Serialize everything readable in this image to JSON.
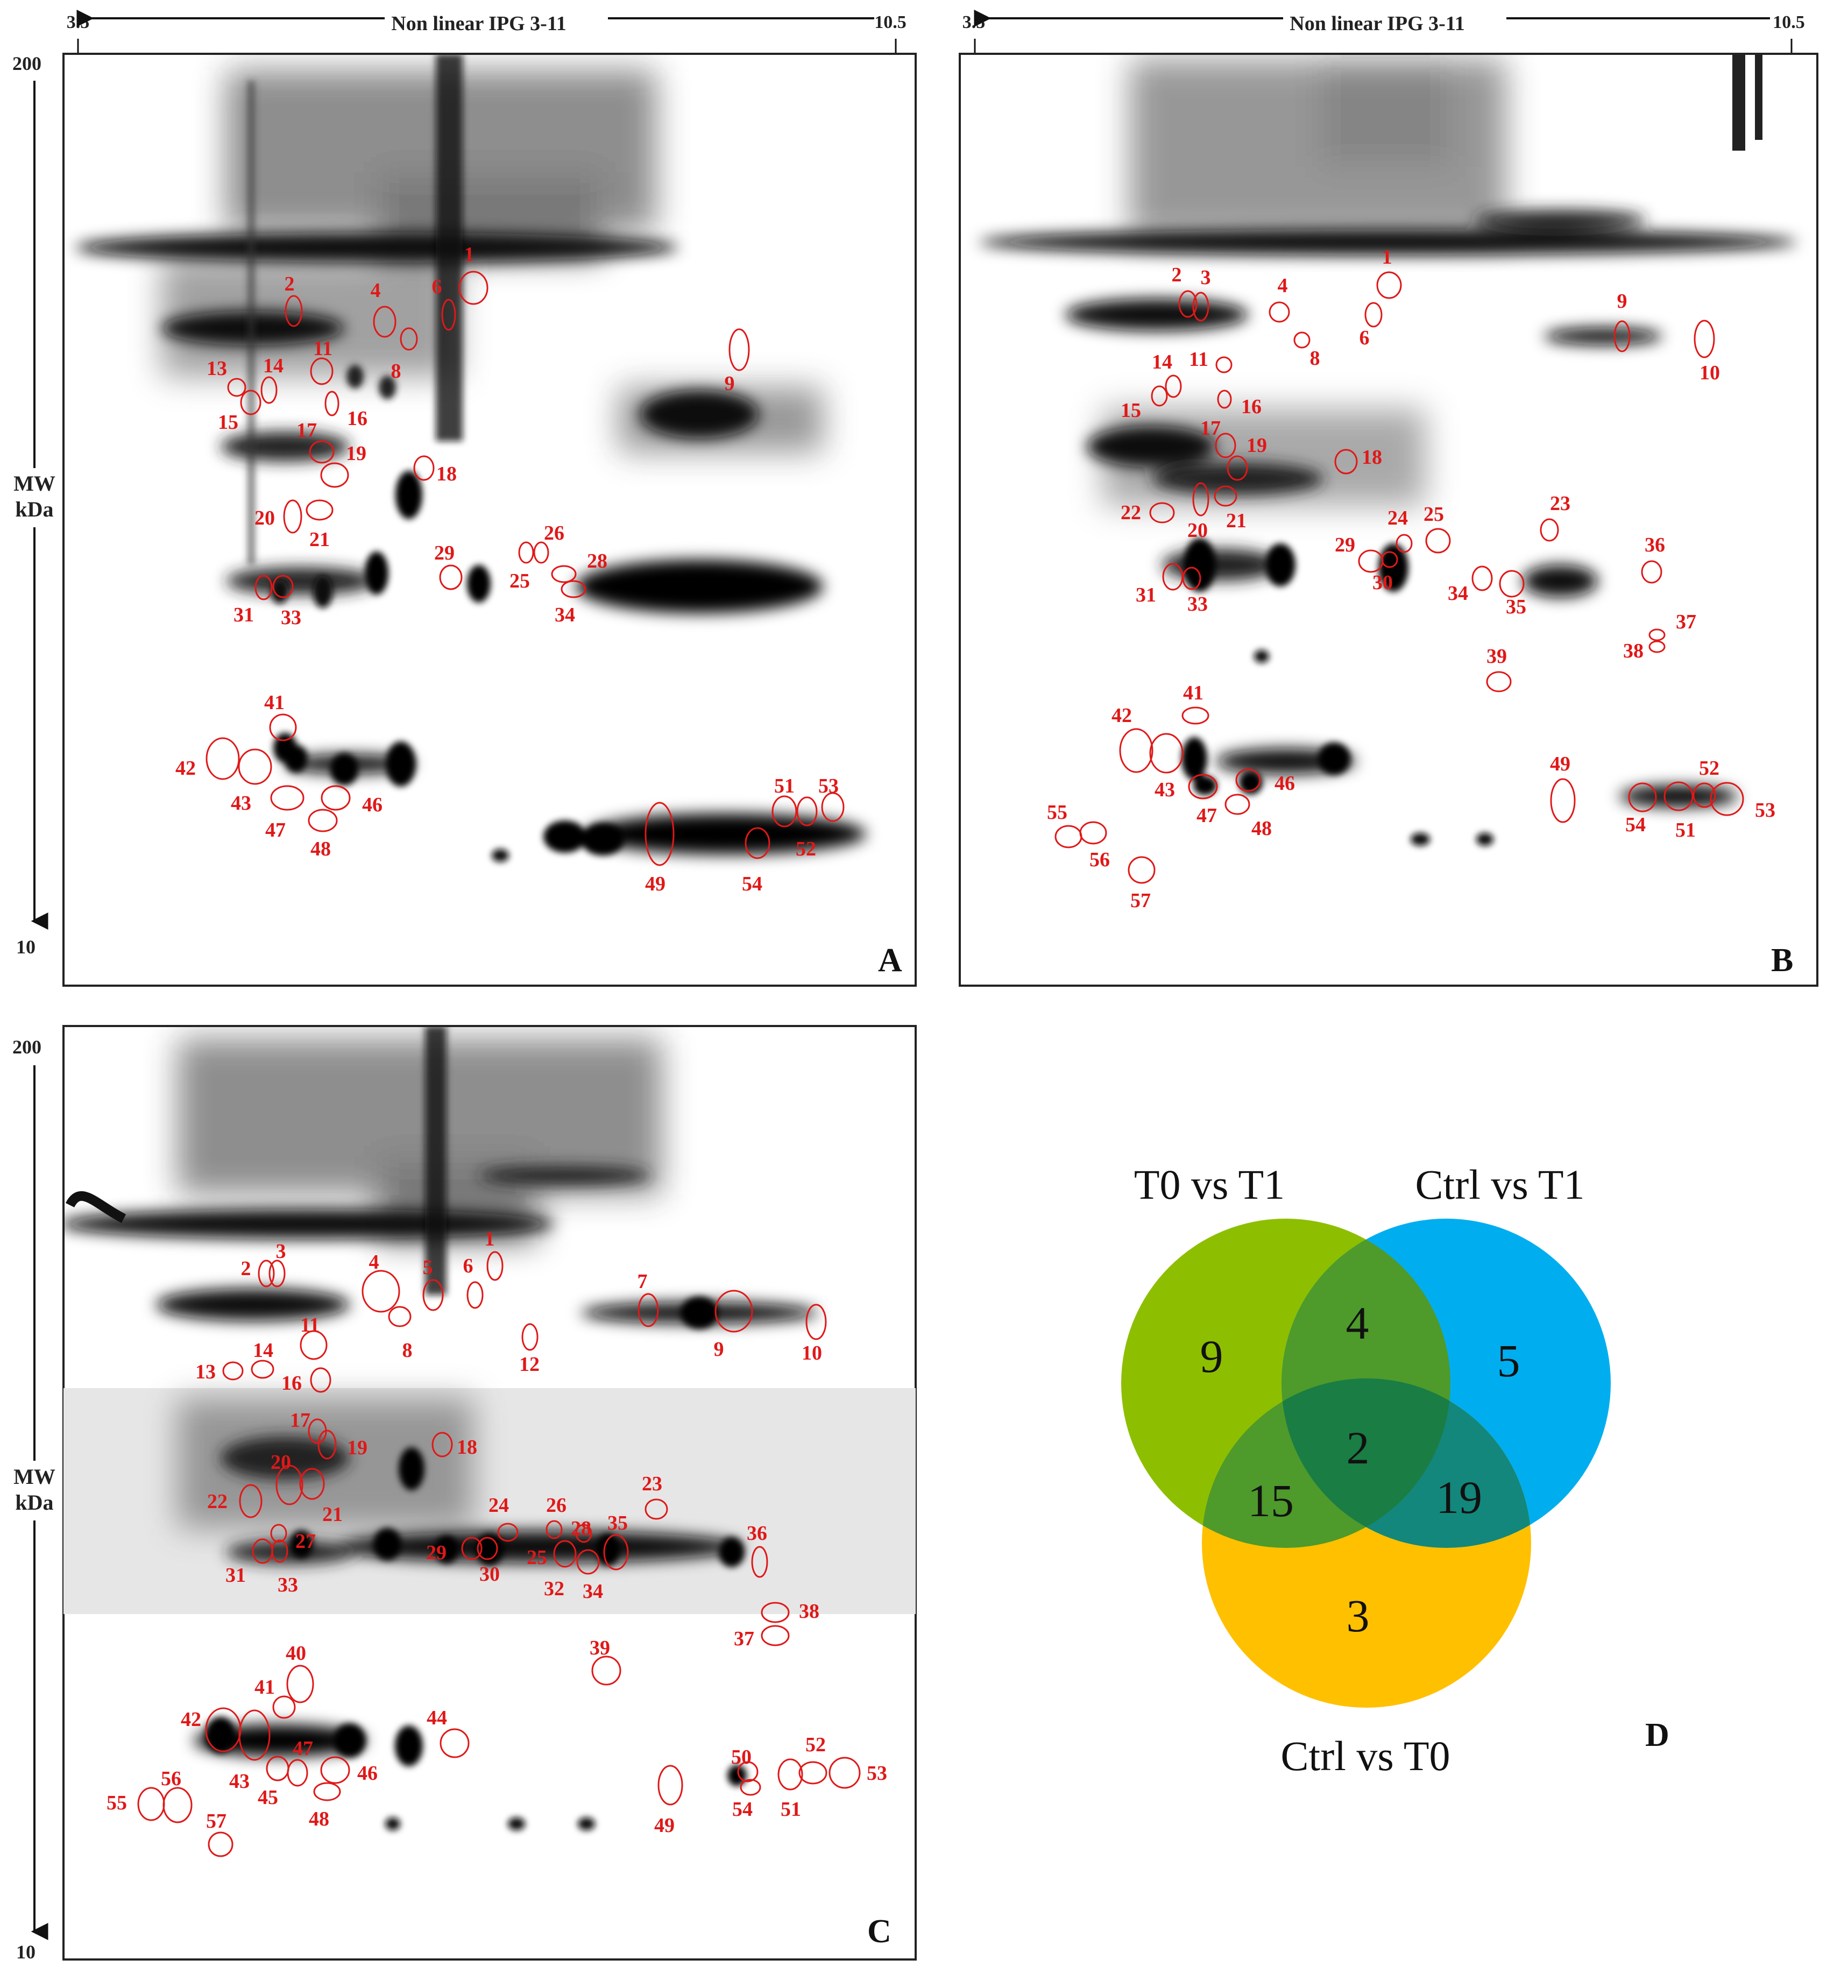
{
  "axis": {
    "ph_left": "3.5",
    "ph_right": "10.5",
    "ph_title": "Non linear IPG 3-11",
    "mw_top": "200",
    "mw_bottom": "10",
    "mw_title_1": "MW",
    "mw_title_2": "kDa"
  },
  "panels": [
    {
      "id": "A",
      "letter": "A",
      "spots": [
        "1",
        "2",
        "4",
        "6",
        "8",
        "9",
        "11",
        "13",
        "14",
        "15",
        "16",
        "17",
        "18",
        "19",
        "20",
        "21",
        "25",
        "26",
        "28",
        "29",
        "31",
        "33",
        "34",
        "41",
        "42",
        "43",
        "46",
        "47",
        "48",
        "49",
        "51",
        "52",
        "53",
        "54"
      ]
    },
    {
      "id": "B",
      "letter": "B",
      "spots": [
        "1",
        "2",
        "3",
        "4",
        "6",
        "8",
        "9",
        "10",
        "11",
        "14",
        "15",
        "16",
        "17",
        "18",
        "19",
        "20",
        "21",
        "22",
        "23",
        "24",
        "25",
        "29",
        "30",
        "31",
        "33",
        "34",
        "35",
        "36",
        "37",
        "38",
        "39",
        "41",
        "42",
        "43",
        "46",
        "47",
        "48",
        "49",
        "51",
        "52",
        "53",
        "54",
        "55",
        "56",
        "57"
      ]
    },
    {
      "id": "C",
      "letter": "C",
      "spots": [
        "1",
        "2",
        "3",
        "4",
        "5",
        "6",
        "7",
        "8",
        "9",
        "10",
        "11",
        "12",
        "13",
        "14",
        "16",
        "17",
        "18",
        "19",
        "20",
        "21",
        "22",
        "23",
        "24",
        "25",
        "26",
        "27",
        "28",
        "29",
        "30",
        "31",
        "32",
        "33",
        "34",
        "35",
        "36",
        "37",
        "38",
        "39",
        "40",
        "41",
        "42",
        "43",
        "44",
        "45",
        "46",
        "47",
        "48",
        "49",
        "50",
        "51",
        "52",
        "53",
        "54",
        "55",
        "56",
        "57"
      ]
    }
  ],
  "venn": {
    "letter": "D",
    "sets": [
      {
        "name": "T0 vs T1",
        "color": "#8dbf00"
      },
      {
        "name": "Ctrl vs T1",
        "color": "#00aeef"
      },
      {
        "name": "Ctrl vs T0",
        "color": "#ffc000"
      }
    ],
    "regions": {
      "t0t1_only": "9",
      "t0t1_ctrlt1": "4",
      "ctrlt1_only": "5",
      "all_three": "2",
      "t0t1_ctrlt0": "15",
      "ctrlt1_ctrlt0": "19",
      "ctrlt0_only": "3"
    }
  }
}
